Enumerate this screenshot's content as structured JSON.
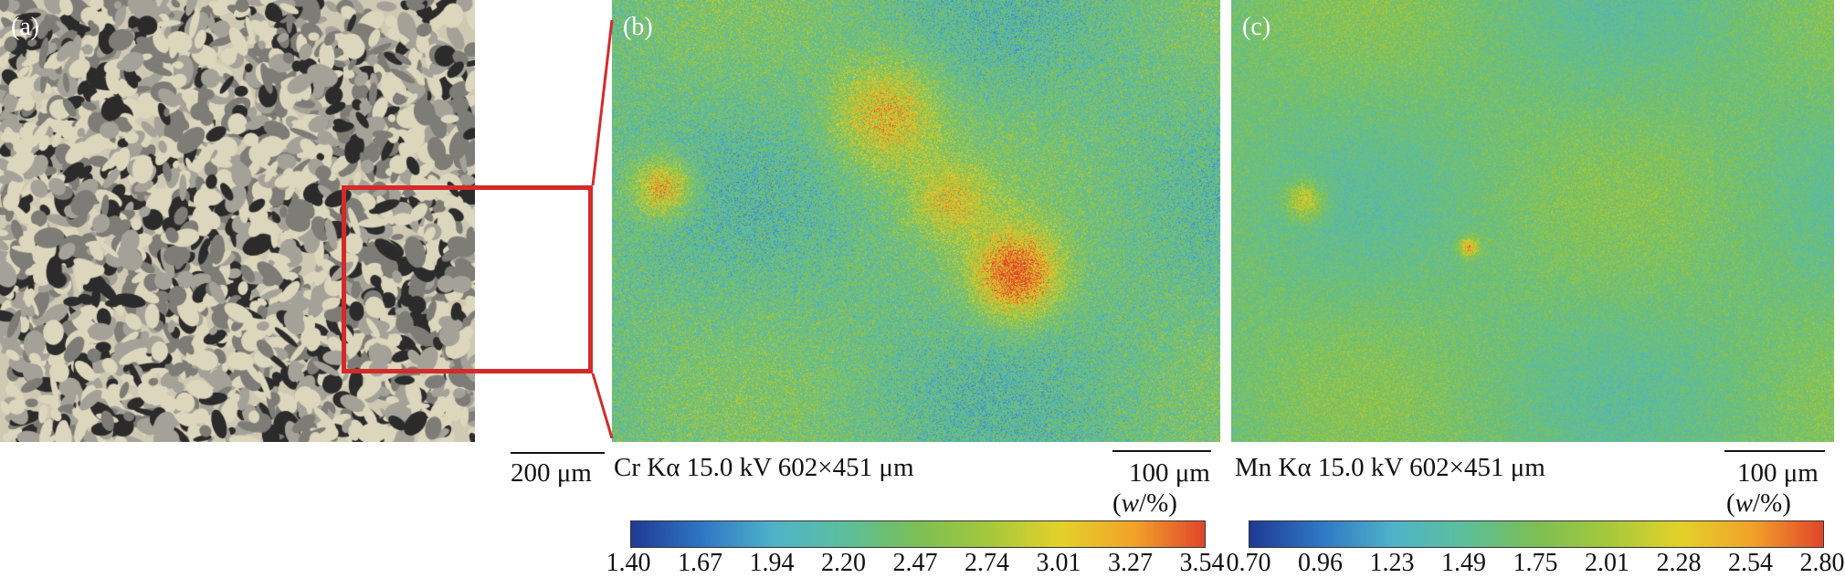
{
  "panels": {
    "a": {
      "label": "(a)",
      "scale_text": "200 μm"
    },
    "b": {
      "label": "(b)",
      "caption": "Cr Kα 15.0 kV 602×451 μm",
      "scale_text": "100 μm",
      "unit_prefix": "(",
      "unit_var": "w",
      "unit_suffix": "/%)",
      "ticks": [
        "1.40",
        "1.67",
        "1.94",
        "2.20",
        "2.47",
        "2.74",
        "3.01",
        "3.27",
        "3.54"
      ]
    },
    "c": {
      "label": "(c)",
      "caption": "Mn Kα 15.0 kV 602×451 μm",
      "scale_text": "100 μm",
      "unit_prefix": "(",
      "unit_var": "w",
      "unit_suffix": "/%)",
      "ticks": [
        "0.70",
        "0.96",
        "1.23",
        "1.49",
        "1.75",
        "2.01",
        "2.28",
        "2.54",
        "2.80"
      ]
    }
  },
  "colors": {
    "highlight_box": "#d42a2a",
    "colormap": [
      "#1f3a93",
      "#2f77c4",
      "#4fb3c9",
      "#5cbf9b",
      "#7cbf55",
      "#a6c83c",
      "#e3d12a",
      "#f2a32a",
      "#e0452a"
    ]
  }
}
